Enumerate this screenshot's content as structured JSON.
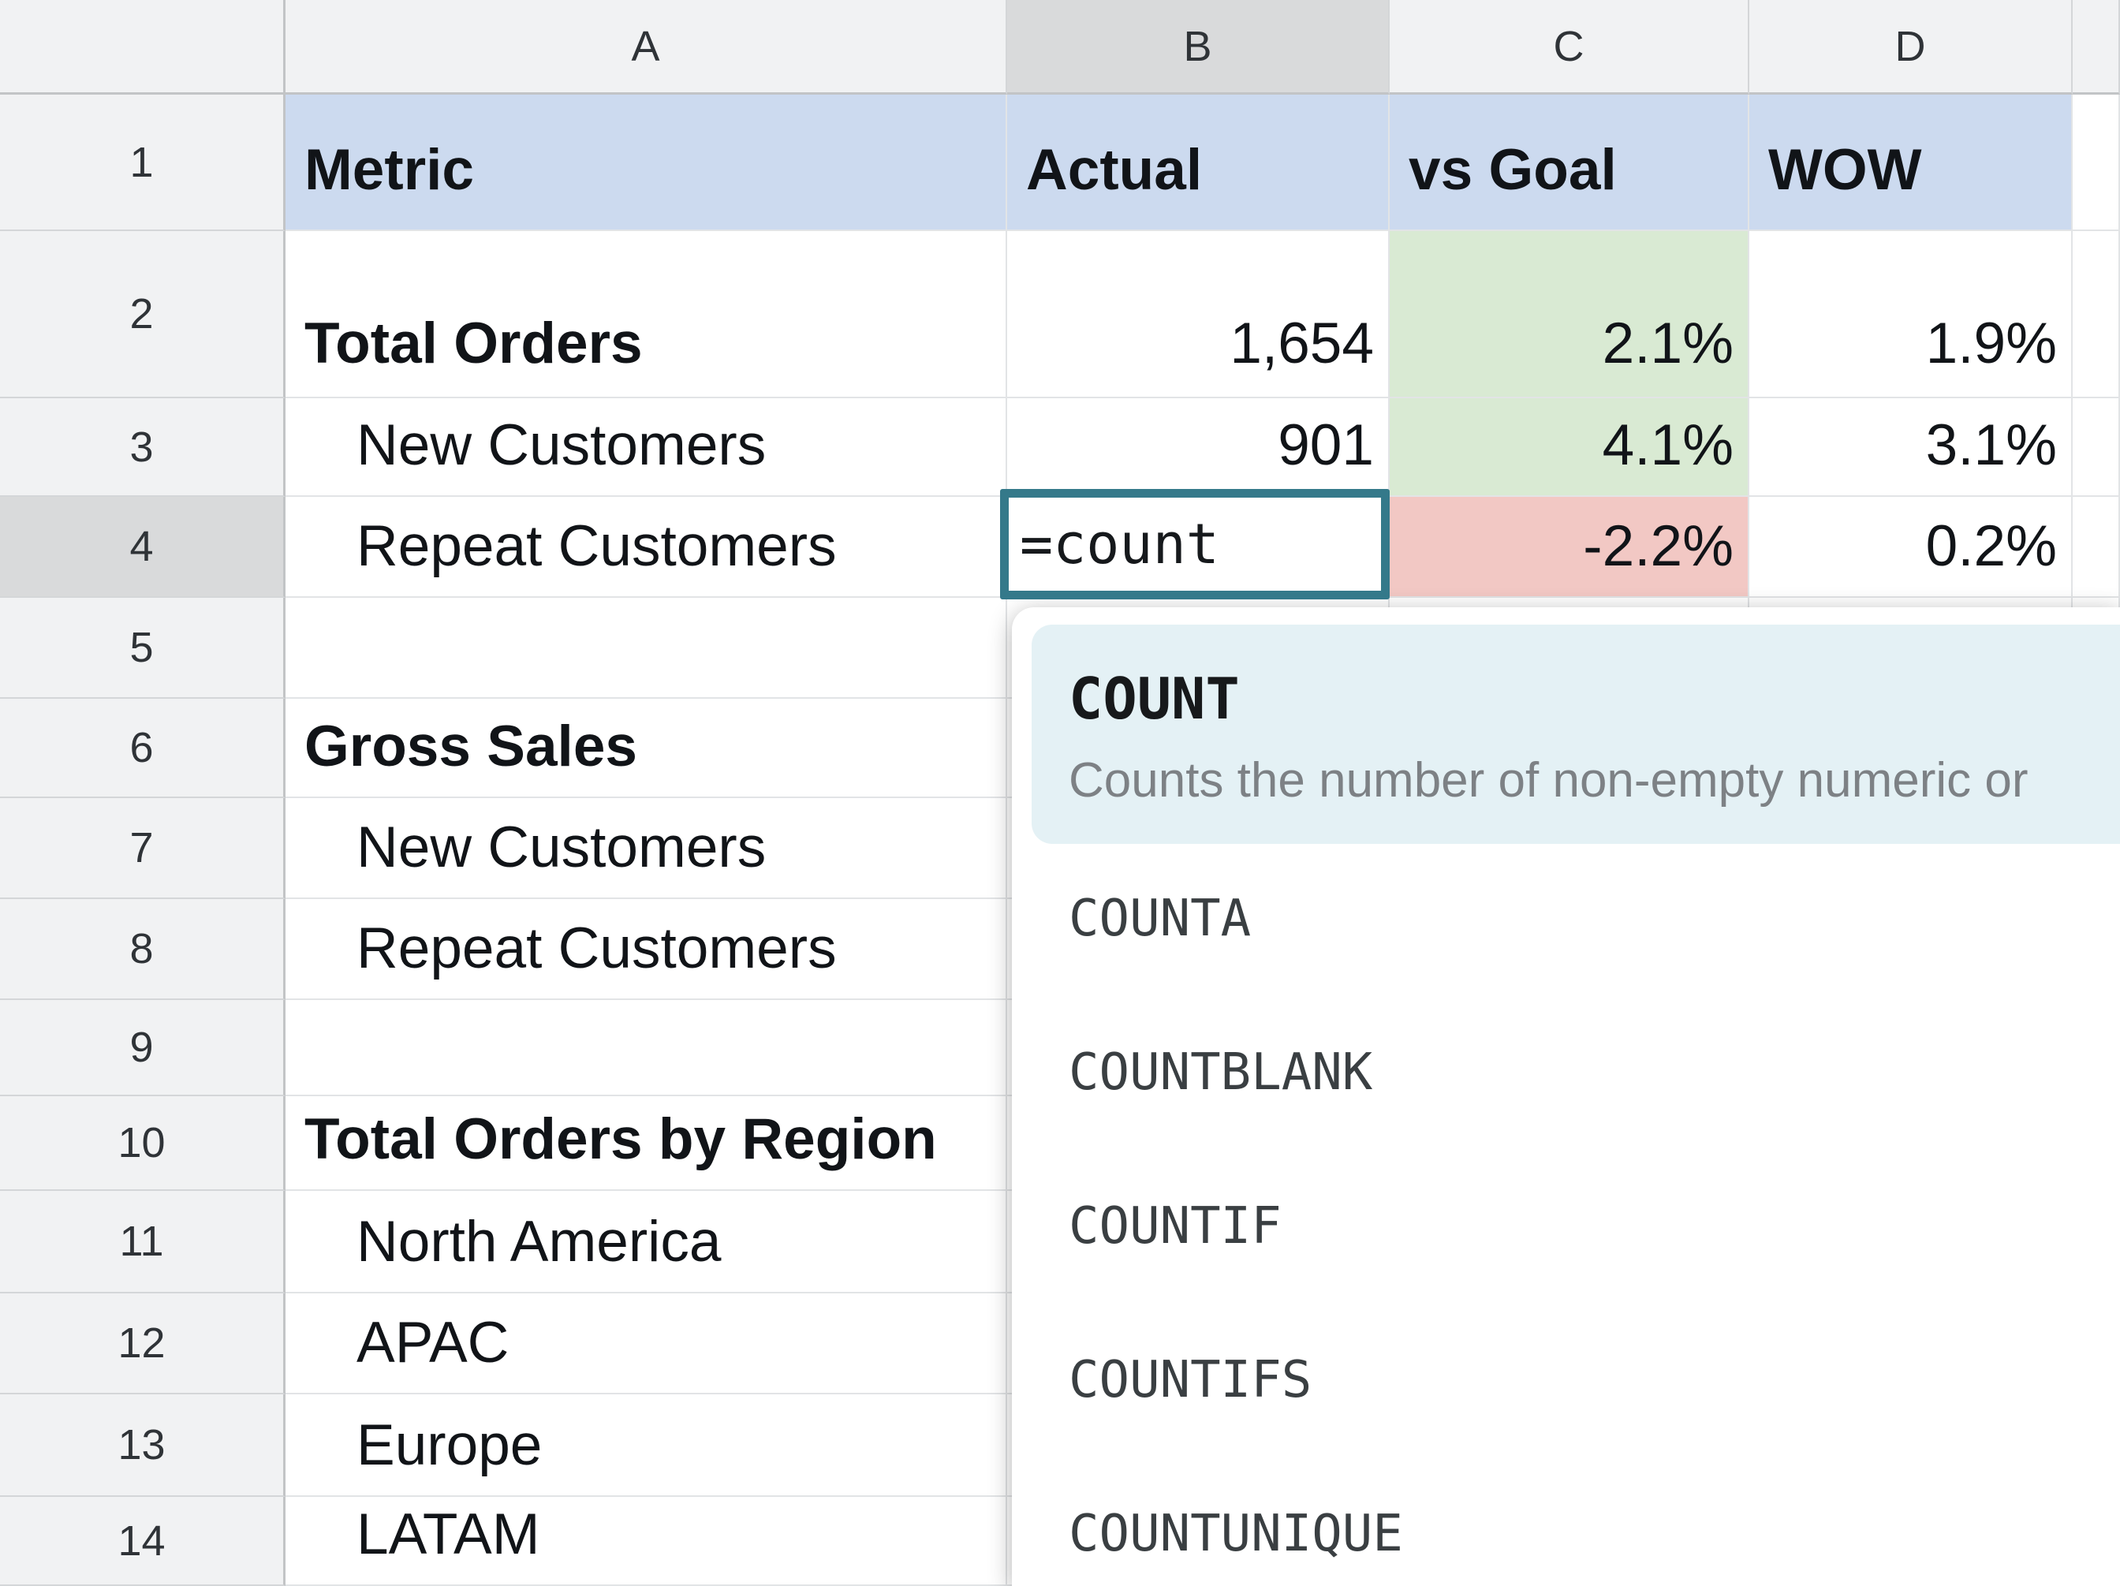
{
  "sheet": {
    "col_headers": [
      "A",
      "B",
      "C",
      "D"
    ],
    "rows": [
      {
        "n": "1",
        "a": "Metric",
        "b": "Actual",
        "c": "vs Goal",
        "d": "WOW"
      },
      {
        "n": "2",
        "a": "Total Orders",
        "b": "1,654",
        "c": "2.1%",
        "d": "1.9%"
      },
      {
        "n": "3",
        "a": "New Customers",
        "b": "901",
        "c": "4.1%",
        "d": "3.1%"
      },
      {
        "n": "4",
        "a": "Repeat Customers",
        "b": "",
        "c": "-2.2%",
        "d": "0.2%"
      },
      {
        "n": "5",
        "a": "",
        "b": "",
        "c": "",
        "d": ""
      },
      {
        "n": "6",
        "a": "Gross Sales",
        "b": "",
        "c": "",
        "d": ""
      },
      {
        "n": "7",
        "a": "New Customers",
        "b": "",
        "c": "",
        "d": ""
      },
      {
        "n": "8",
        "a": "Repeat Customers",
        "b": "",
        "c": "",
        "d": ""
      },
      {
        "n": "9",
        "a": "",
        "b": "",
        "c": "",
        "d": ""
      },
      {
        "n": "10",
        "a": "Total Orders by Region",
        "b": "",
        "c": "",
        "d": ""
      },
      {
        "n": "11",
        "a": "North America",
        "b": "",
        "c": "",
        "d": ""
      },
      {
        "n": "12",
        "a": "APAC",
        "b": "",
        "c": "",
        "d": ""
      },
      {
        "n": "13",
        "a": "Europe",
        "b": "",
        "c": "",
        "d": ""
      },
      {
        "n": "14",
        "a": "LATAM",
        "b": "",
        "c": "",
        "d": ""
      }
    ]
  },
  "editor": {
    "cell": "B4",
    "value": "=count"
  },
  "autocomplete": {
    "selected": {
      "name": "COUNT",
      "description": "Counts the number of non-empty numeric or"
    },
    "items": [
      "COUNTA",
      "COUNTBLANK",
      "COUNTIF",
      "COUNTIFS",
      "COUNTUNIQUE"
    ]
  },
  "colors": {
    "header_fill": "#ccdaef",
    "positive_fill": "#d9ead3",
    "negative_fill": "#f2c8c4",
    "editor_border": "#34798a",
    "autocomplete_highlight": "#e4f1f5",
    "selected_header": "#d9dadb"
  }
}
